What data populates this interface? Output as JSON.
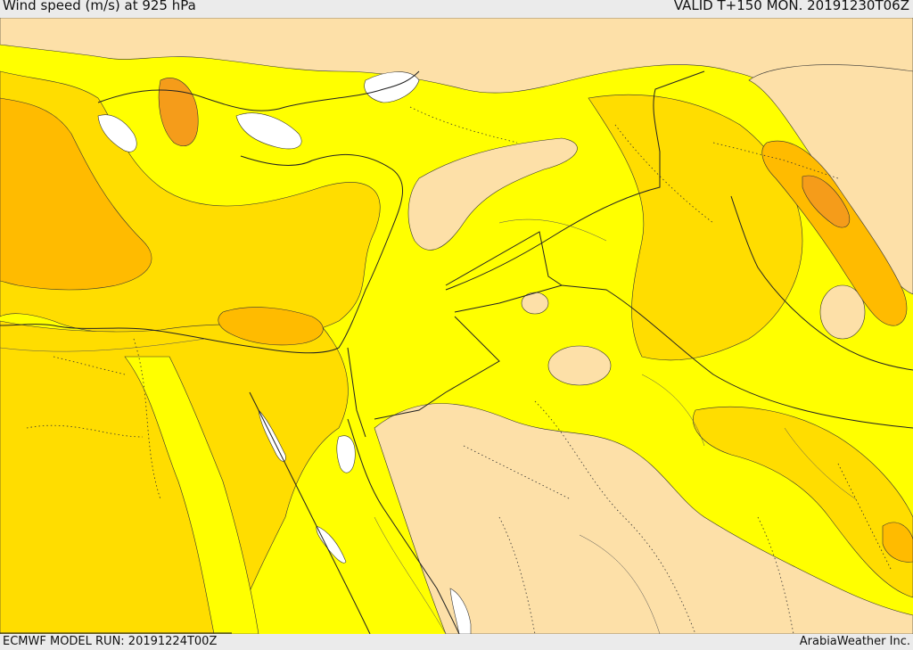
{
  "header": {
    "title": "Wind speed (m/s) at 925 hPa",
    "valid": "VALID T+150 MON. 20191230T06Z"
  },
  "footer": {
    "model_run": "ECMWF MODEL RUN: 20191224T00Z",
    "credit": "ArabiaWeather Inc."
  },
  "palette": {
    "band_0_5": "#fde0a8",
    "band_5_10": "#ffff00",
    "band_10_15": "#ffdd00",
    "band_15_20": "#ffbb00",
    "band_20_25": "#f59c1a",
    "sea_calm": "#ffffff",
    "header_bg": "#ebebeb"
  }
}
